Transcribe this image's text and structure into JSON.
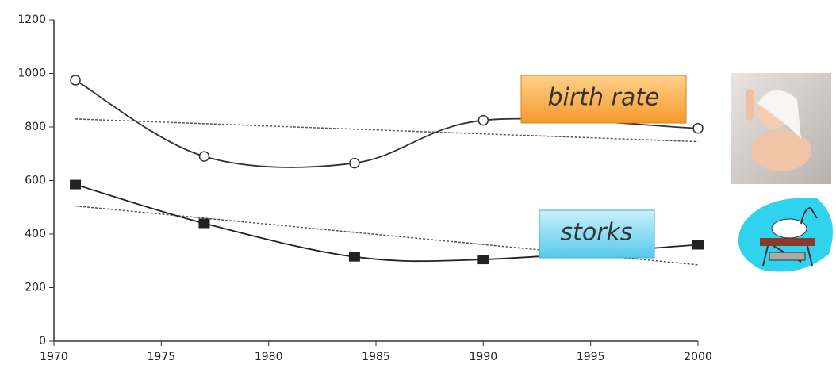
{
  "chart_data": {
    "type": "line",
    "x": [
      1971,
      1977,
      1984,
      1990,
      2000
    ],
    "series": [
      {
        "name": "birth rate",
        "color": "#333333",
        "marker": "circle",
        "values": [
          975,
          690,
          665,
          825,
          795
        ],
        "trend": [
          830,
          745
        ]
      },
      {
        "name": "storks",
        "color": "#222222",
        "marker": "square",
        "values": [
          585,
          440,
          315,
          305,
          360
        ],
        "trend": [
          505,
          285
        ]
      }
    ],
    "trend_x": [
      1971,
      2000
    ],
    "xlim": [
      1970,
      2000
    ],
    "xticks": [
      1970,
      1975,
      1980,
      1985,
      1990,
      1995,
      2000
    ],
    "ylim": [
      0,
      1200
    ],
    "yticks": [
      0,
      200,
      400,
      600,
      800,
      1000,
      1200
    ]
  }
}
